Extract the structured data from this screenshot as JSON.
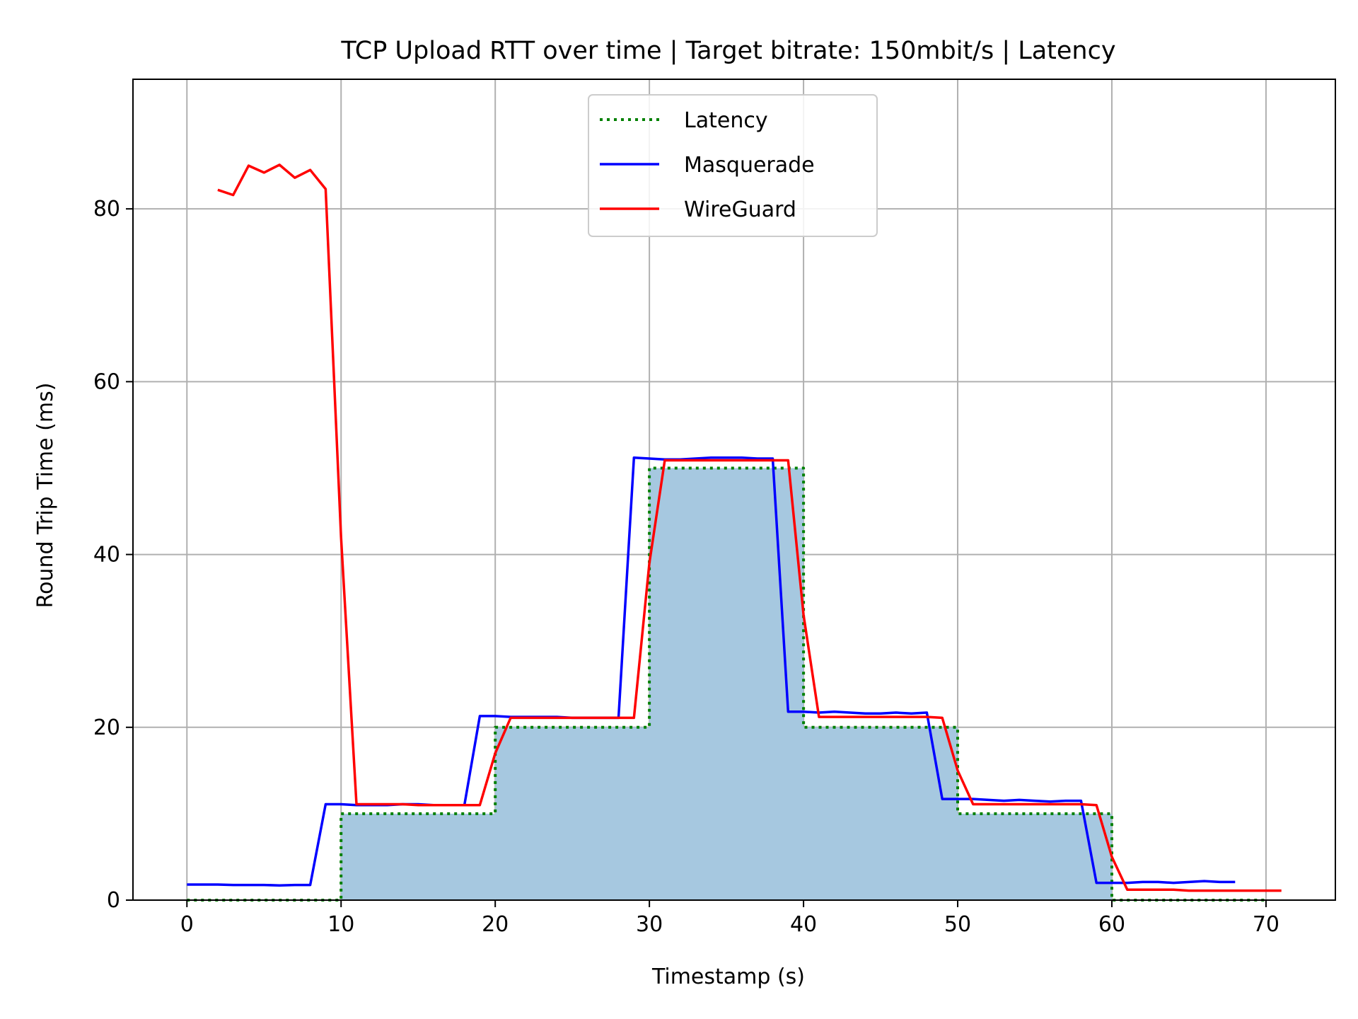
{
  "chart_data": {
    "type": "line",
    "title": "TCP Upload RTT over time | Target bitrate: 150mbit/s | Latency",
    "xlabel": "Timestamp (s)",
    "ylabel": "Round Trip Time (ms)",
    "xlim": [
      -3.5,
      74.5
    ],
    "ylim": [
      0,
      95
    ],
    "xticks": [
      0,
      10,
      20,
      30,
      40,
      50,
      60,
      70
    ],
    "yticks": [
      0,
      20,
      40,
      60,
      80
    ],
    "grid": true,
    "legend_position": "top-center",
    "series": [
      {
        "name": "Latency",
        "color": "#008000",
        "style": "dotted",
        "fill": true,
        "fill_color": "#a6c8e0",
        "x": [
          0,
          10,
          10,
          20,
          20,
          30,
          30,
          40,
          40,
          50,
          50,
          60,
          60,
          70
        ],
        "y": [
          0,
          0,
          10,
          10,
          20,
          20,
          50,
          50,
          20,
          20,
          10,
          10,
          0,
          0
        ]
      },
      {
        "name": "Masquerade",
        "color": "#0000ff",
        "style": "solid",
        "x": [
          0,
          1,
          2,
          3,
          4,
          5,
          6,
          7,
          8,
          9,
          10,
          11,
          12,
          13,
          14,
          15,
          16,
          17,
          18,
          19,
          20,
          21,
          22,
          23,
          24,
          25,
          26,
          27,
          28,
          29,
          30,
          31,
          32,
          33,
          34,
          35,
          36,
          37,
          38,
          39,
          40,
          41,
          42,
          43,
          44,
          45,
          46,
          47,
          48,
          49,
          50,
          51,
          52,
          53,
          54,
          55,
          56,
          57,
          58,
          59,
          60,
          61,
          62,
          63,
          64,
          65,
          66,
          67,
          68
        ],
        "y": [
          1.8,
          1.8,
          1.8,
          1.75,
          1.75,
          1.75,
          1.7,
          1.75,
          1.75,
          11.1,
          11.1,
          11.0,
          11.0,
          11.0,
          11.1,
          11.1,
          11.0,
          11.0,
          11.0,
          21.3,
          21.3,
          21.2,
          21.2,
          21.2,
          21.2,
          21.1,
          21.1,
          21.1,
          21.1,
          51.2,
          51.1,
          51.0,
          51.0,
          51.1,
          51.2,
          51.2,
          51.2,
          51.1,
          51.1,
          21.8,
          21.8,
          21.7,
          21.8,
          21.7,
          21.6,
          21.6,
          21.7,
          21.6,
          21.7,
          11.7,
          11.7,
          11.7,
          11.6,
          11.5,
          11.6,
          11.5,
          11.4,
          11.5,
          11.5,
          2.0,
          2.0,
          2.0,
          2.1,
          2.1,
          2.0,
          2.1,
          2.2,
          2.1,
          2.1
        ]
      },
      {
        "name": "WireGuard",
        "color": "#ff0000",
        "style": "solid",
        "x": [
          2,
          3,
          4,
          5,
          6,
          7,
          8,
          9,
          10,
          11,
          12,
          13,
          14,
          15,
          16,
          17,
          18,
          19,
          20,
          21,
          22,
          23,
          24,
          25,
          26,
          27,
          28,
          29,
          30,
          31,
          32,
          33,
          34,
          35,
          36,
          37,
          38,
          39,
          40,
          41,
          42,
          43,
          44,
          45,
          46,
          47,
          48,
          49,
          50,
          51,
          52,
          53,
          54,
          55,
          56,
          57,
          58,
          59,
          60,
          61,
          62,
          63,
          64,
          65,
          66,
          67,
          68,
          69,
          70,
          71
        ],
        "y": [
          82.2,
          81.6,
          85.0,
          84.2,
          85.1,
          83.6,
          84.5,
          82.3,
          42.0,
          11.1,
          11.1,
          11.1,
          11.1,
          11.0,
          11.0,
          11.0,
          11.0,
          11.0,
          17.0,
          21.1,
          21.1,
          21.1,
          21.1,
          21.1,
          21.1,
          21.1,
          21.1,
          21.1,
          39.0,
          50.9,
          50.9,
          50.9,
          50.9,
          50.9,
          50.9,
          50.9,
          50.9,
          50.9,
          33.0,
          21.2,
          21.2,
          21.2,
          21.2,
          21.2,
          21.2,
          21.2,
          21.2,
          21.1,
          15.0,
          11.1,
          11.1,
          11.1,
          11.1,
          11.1,
          11.1,
          11.1,
          11.1,
          11.0,
          5.0,
          1.2,
          1.2,
          1.2,
          1.2,
          1.1,
          1.1,
          1.1,
          1.1,
          1.1,
          1.1,
          1.1
        ]
      }
    ]
  }
}
